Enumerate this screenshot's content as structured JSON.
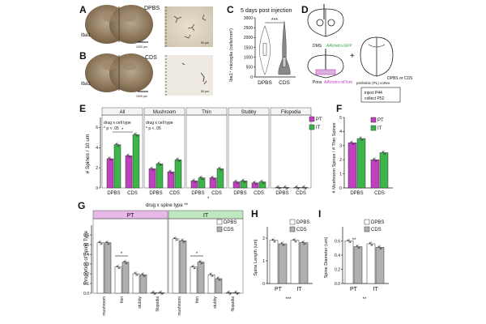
{
  "colors": {
    "pt": "#c040c0",
    "it": "#3cb54a",
    "dpbs": "#ffffff",
    "cds": "#b0b0b0",
    "pt_band": "#e8b8e8",
    "it_band": "#c0e8c0",
    "violin": "#888888",
    "aav_green": "#2ea84a",
    "aav_magenta": "#c040c0"
  },
  "panels": {
    "A": {
      "letter": "A",
      "tag": "DPBS",
      "stain": "Iba1",
      "scale": "1000 µm",
      "zoom_scale": "50 µm"
    },
    "B": {
      "letter": "B",
      "tag": "CDS",
      "stain": "Iba1",
      "scale": "1000 µm",
      "zoom_scale": "50 µm"
    },
    "C": {
      "letter": "C",
      "title": "5 days post injection",
      "ylabel": "Iba1⁺ microglia (cells/mm²)",
      "sig": "***"
    },
    "D": {
      "letter": "D",
      "dms": "DMS",
      "aav1": "AAVretro-GFP",
      "pons": "Pons",
      "aav2": "AAVretro-tdTom",
      "plus": "+",
      "prelimbic": "prelimbic (PL) cortex",
      "treat": "DPBS or CDS",
      "inject": "inject P44",
      "collect": "collect P52"
    },
    "E": {
      "letter": "E",
      "ylabel": "# Spines / 10 um",
      "interaction": "drug x cell type",
      "pval": "* p < .05",
      "star": "*",
      "bottom_star": "*"
    },
    "F": {
      "letter": "F",
      "ylabel": "# Mushroom Spines / # Thin Spines"
    },
    "G": {
      "letter": "G",
      "title": "drug x spine type **",
      "ylabel": "Proportion of Spine Type",
      "pt": "PT",
      "it": "IT",
      "star": "*"
    },
    "H": {
      "letter": "H",
      "ylabel": "Spine Length (um)",
      "sig": "***"
    },
    "I": {
      "letter": "I",
      "ylabel": "Spine Diameter (um)",
      "sig": "**",
      "inner_sig": "**"
    }
  },
  "legend": {
    "pt": "PT",
    "it": "IT",
    "dpbs": "DPBS",
    "cds": "CDS"
  },
  "chart_data": [
    {
      "id": "C",
      "type": "violin",
      "categories": [
        "DPBS",
        "CDS"
      ],
      "ylim": [
        0,
        3000
      ],
      "yticks": [
        "0",
        "500",
        "1000",
        "1500",
        "2000",
        "2500",
        "3000"
      ],
      "medians": [
        1400,
        700
      ]
    },
    {
      "id": "E",
      "type": "bar",
      "facets": [
        "All",
        "Mushroom",
        "Thin",
        "Stubby",
        "Filopodia"
      ],
      "categories": [
        "DPBS",
        "CDS"
      ],
      "ylim": [
        0,
        7
      ],
      "yticks": [
        "0",
        "2",
        "4",
        "6"
      ],
      "series": [
        {
          "name": "PT",
          "values": [
            [
              2.9,
              3.2
            ],
            [
              1.9,
              1.6
            ],
            [
              0.7,
              1.0
            ],
            [
              0.6,
              0.5
            ],
            [
              0.05,
              0.05
            ]
          ]
        },
        {
          "name": "IT",
          "values": [
            [
              4.3,
              5.3
            ],
            [
              2.4,
              2.8
            ],
            [
              1.0,
              1.9
            ],
            [
              0.7,
              0.6
            ],
            [
              0.05,
              0.05
            ]
          ]
        }
      ]
    },
    {
      "id": "F",
      "type": "bar",
      "categories": [
        "DPBS",
        "CDS"
      ],
      "ylim": [
        0,
        5
      ],
      "yticks": [
        "0",
        "1",
        "2",
        "3",
        "4",
        "5"
      ],
      "series": [
        {
          "name": "PT",
          "values": [
            3.2,
            2.0
          ]
        },
        {
          "name": "IT",
          "values": [
            3.5,
            2.5
          ]
        }
      ]
    },
    {
      "id": "G",
      "type": "bar",
      "facets": [
        "PT",
        "IT"
      ],
      "categories": [
        "mushroom",
        "thin",
        "stubby",
        "filopodia"
      ],
      "ylim": [
        0,
        0.7
      ],
      "yticks": [
        "0.0",
        "0.1",
        "0.2",
        "0.3",
        "0.4",
        "0.5",
        "0.6"
      ],
      "series": [
        {
          "name": "DPBS",
          "values": [
            [
              0.52,
              0.27,
              0.2,
              0.005
            ],
            [
              0.56,
              0.27,
              0.19,
              0.005
            ]
          ]
        },
        {
          "name": "CDS",
          "values": [
            [
              0.52,
              0.32,
              0.19,
              0.005
            ],
            [
              0.54,
              0.32,
              0.15,
              0.005
            ]
          ]
        }
      ]
    },
    {
      "id": "H",
      "type": "bar",
      "categories": [
        "PT",
        "IT"
      ],
      "ylim": [
        0,
        2.5
      ],
      "yticks": [
        "0",
        "1",
        "2"
      ],
      "series": [
        {
          "name": "DPBS",
          "values": [
            1.9,
            1.9
          ]
        },
        {
          "name": "CDS",
          "values": [
            1.75,
            1.8
          ]
        }
      ]
    },
    {
      "id": "I",
      "type": "bar",
      "categories": [
        "PT",
        "IT"
      ],
      "ylim": [
        0,
        0.8
      ],
      "yticks": [
        "0.0",
        "0.2",
        "0.4",
        "0.6"
      ],
      "series": [
        {
          "name": "DPBS",
          "values": [
            0.6,
            0.56
          ]
        },
        {
          "name": "CDS",
          "values": [
            0.52,
            0.51
          ]
        }
      ]
    }
  ]
}
